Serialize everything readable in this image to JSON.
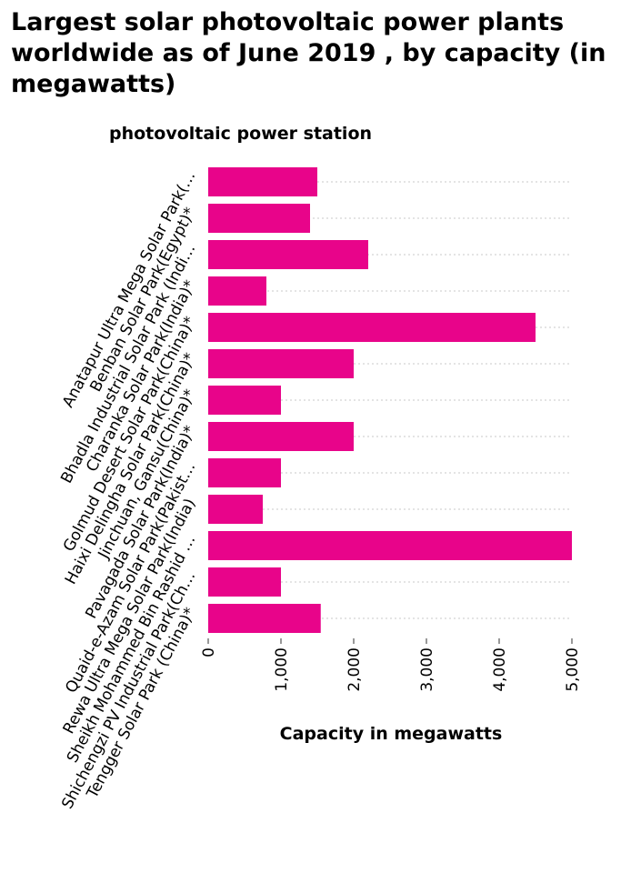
{
  "chart_data": {
    "type": "bar",
    "orientation": "horizontal",
    "title": "Largest solar photovoltaic power plants worldwide as of June 2019 , by capacity (in megawatts)",
    "ylabel": "photovoltaic power station",
    "xlabel": "Capacity in megawatts",
    "categories": [
      "Anatapur Ultra Mega Solar Park(…",
      "Benban Solar Park(Egypt)*",
      "Bhadla Industrial Solar Park (Indi…",
      "Charanka Solar Park(India)*",
      "Golmud Desert Solar Park(China)*",
      "Haixi Delingha Solar Park(China)*",
      "Jinchuan, Gansu(China)*",
      "Pavagada Solar Park(India)*",
      "Quaid-e-Azam Solar Park(Pakist…",
      "Rewa Ultra Mega Solar Park(India)",
      "Sheikh Mohammed Bin Rashid …",
      "Shichengzi PV Industrial Park(Ch…",
      "Tengger Solar Park (China)*"
    ],
    "values": [
      1500,
      1400,
      2200,
      800,
      4500,
      2000,
      1000,
      2000,
      1000,
      750,
      5000,
      1000,
      1547
    ],
    "xlim": [
      0,
      5000
    ],
    "xticks": [
      "0",
      "1,000",
      "2,000",
      "3,000",
      "4,000",
      "5,000"
    ],
    "bar_color": "#e8048a",
    "grid": "horizontal dotted"
  }
}
